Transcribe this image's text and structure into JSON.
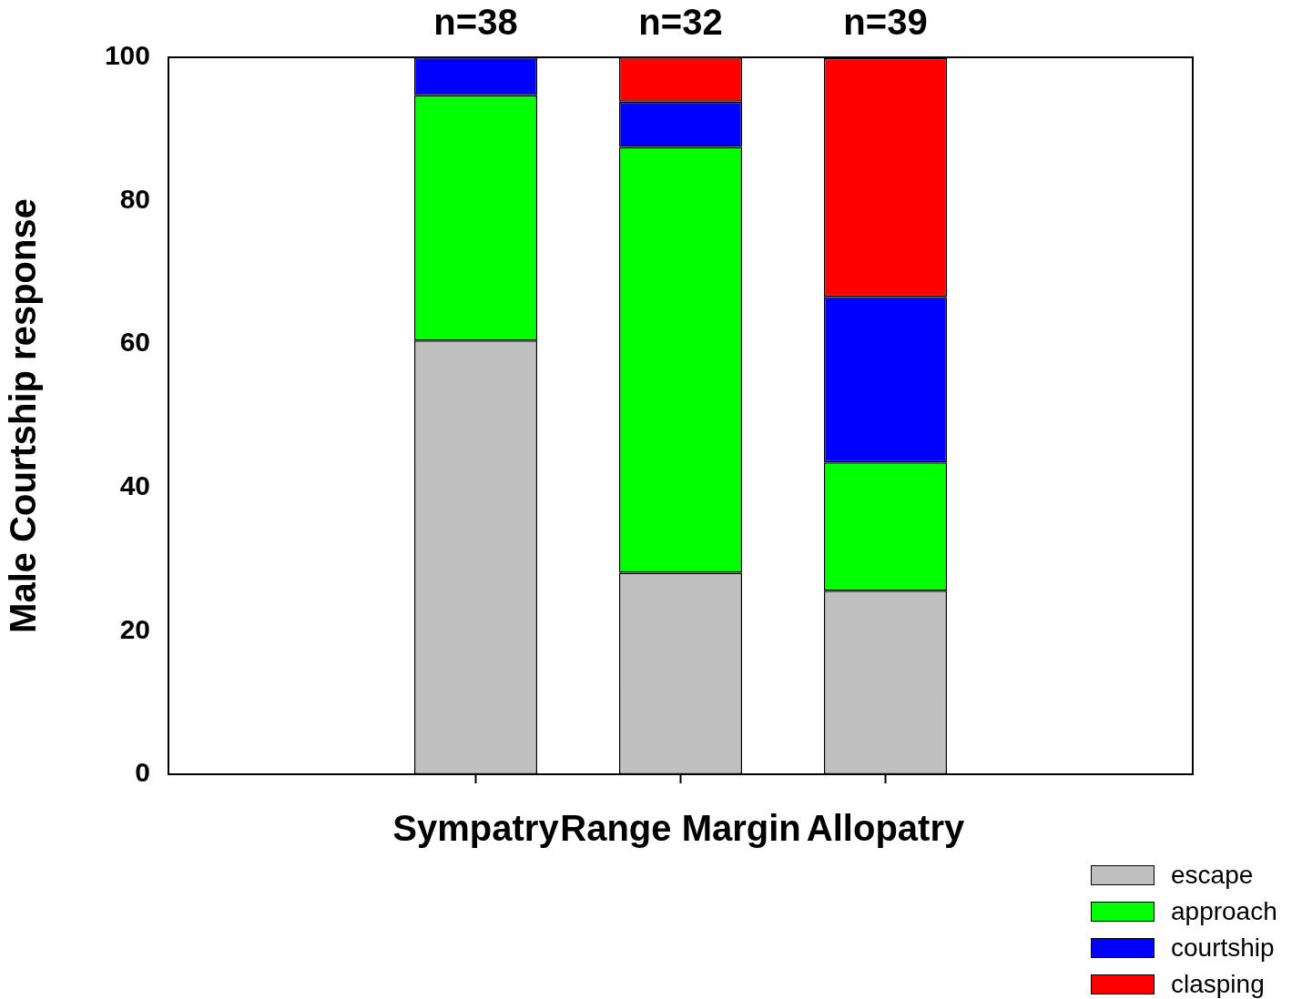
{
  "chart_data": {
    "type": "bar",
    "stacked": true,
    "ylabel": "Male Courtship response",
    "categories": [
      null,
      "Sympatry",
      "Range Margin",
      "Allopatry",
      null
    ],
    "series": [
      {
        "name": "escape",
        "color": "#c0c0c0",
        "values": [
          null,
          60.5,
          28.1,
          25.6,
          null
        ]
      },
      {
        "name": "approach",
        "color": "#00ff00",
        "values": [
          null,
          34.2,
          59.4,
          17.9,
          null
        ]
      },
      {
        "name": "courtship",
        "color": "#0000ff",
        "values": [
          null,
          5.3,
          6.3,
          23.1,
          null
        ]
      },
      {
        "name": "clasping",
        "color": "#ff0000",
        "values": [
          null,
          null,
          6.2,
          33.3,
          null
        ]
      }
    ],
    "ylim": [
      0,
      100
    ],
    "yticks": [
      0,
      20,
      40,
      60,
      80,
      100
    ],
    "grid": false,
    "legend": "bottom right",
    "annotations": [
      {
        "text": "n=38",
        "x": "Sympatry",
        "y": 100
      },
      {
        "text": "n=32",
        "x": "Range Margin",
        "y": 100
      },
      {
        "text": "n=39",
        "x": "Allopatry",
        "y": 100
      }
    ]
  }
}
